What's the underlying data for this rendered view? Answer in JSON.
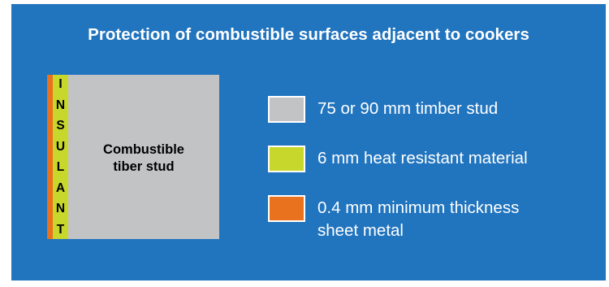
{
  "title": "Protection of combustible surfaces adjacent to cookers",
  "diagram": {
    "insulant_letters": [
      "I",
      "N",
      "S",
      "U",
      "L",
      "A",
      "N",
      "T"
    ],
    "stud_label_line1": "Combustible",
    "stud_label_line2": "tiber stud"
  },
  "legend": [
    {
      "label": "75 or 90 mm timber stud",
      "color": "#c2c3c5"
    },
    {
      "label": "6 mm heat resistant material",
      "color": "#c7d72b"
    },
    {
      "label_line1": "0.4 mm minimum thickness",
      "label_line2": "sheet metal",
      "color": "#e8721e"
    }
  ],
  "colors": {
    "background": "#2174be",
    "timber": "#c2c3c5",
    "heat_resistant": "#c7d72b",
    "sheet_metal": "#e8721e"
  }
}
